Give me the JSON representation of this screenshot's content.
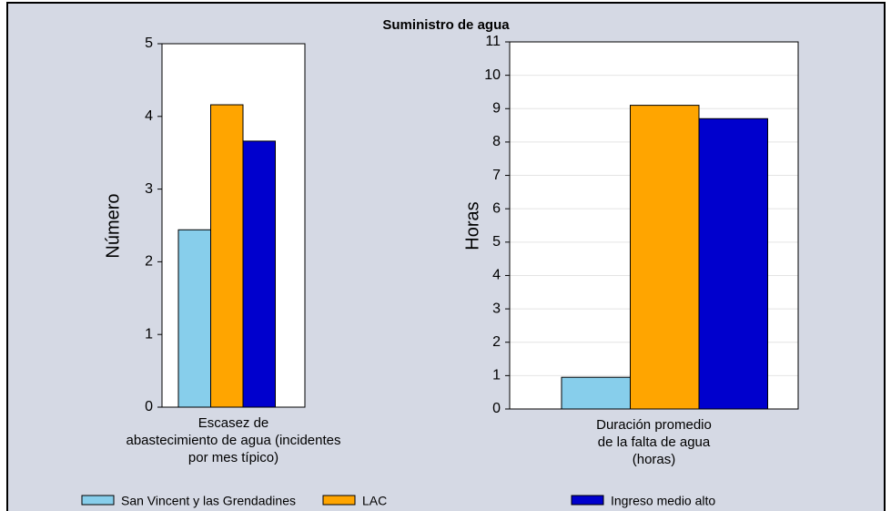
{
  "title": "Suministro de agua",
  "chart_data": [
    {
      "type": "bar",
      "ylabel": "Número",
      "categories": [
        "Escasez de\nabastecimiento de agua (incidentes\npor mes típico)"
      ],
      "ylim": [
        0,
        5
      ],
      "yticks": [
        0,
        1,
        2,
        3,
        4,
        5
      ],
      "grid": false,
      "series": [
        {
          "name": "San Vincent y las Grendadines",
          "color": "#87ceeb",
          "values": [
            2.44
          ]
        },
        {
          "name": "LAC",
          "color": "#ffa500",
          "values": [
            4.16
          ]
        },
        {
          "name": "Ingreso medio alto",
          "color": "#0000cd",
          "values": [
            3.66
          ]
        }
      ]
    },
    {
      "type": "bar",
      "ylabel": "Horas",
      "categories": [
        "Duración promedio\nde la falta de agua\n(horas)"
      ],
      "ylim": [
        0,
        11
      ],
      "yticks": [
        0,
        1,
        2,
        3,
        4,
        5,
        6,
        7,
        8,
        9,
        10,
        11
      ],
      "grid": true,
      "series": [
        {
          "name": "San Vincent y las Grendadines",
          "color": "#87ceeb",
          "values": [
            0.95
          ]
        },
        {
          "name": "LAC",
          "color": "#ffa500",
          "values": [
            9.1
          ]
        },
        {
          "name": "Ingreso medio alto",
          "color": "#0000cd",
          "values": [
            8.7
          ]
        }
      ]
    }
  ]
}
